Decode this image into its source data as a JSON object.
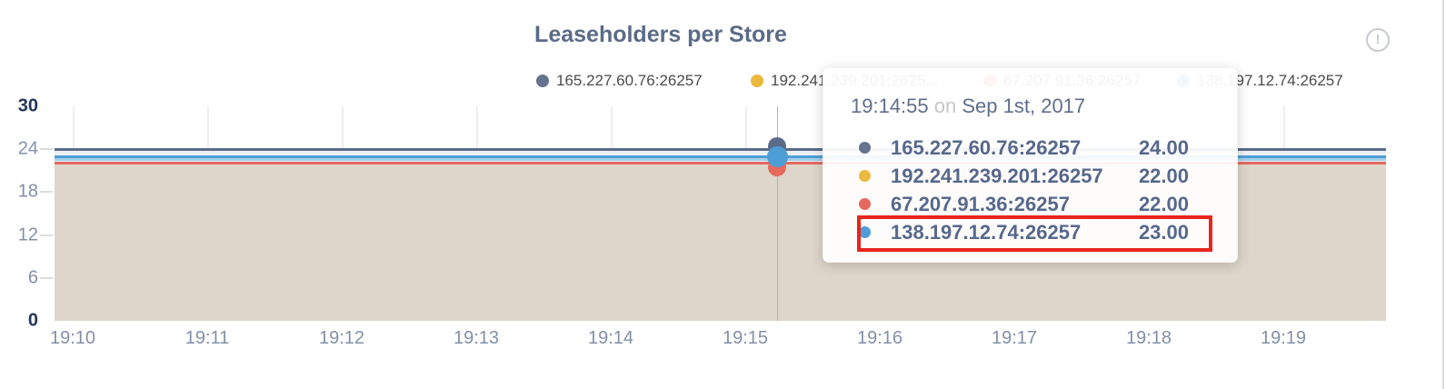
{
  "title": "Leaseholders per Store",
  "info_icon": "circled-exclamation-icon",
  "colors": {
    "slate": "#5b6b8a",
    "yellow": "#eab93d",
    "red": "#e5695e",
    "blue": "#4d9ed6",
    "band_under_slate": "#edf0f4",
    "band_blue_strip1": "#a5cee9",
    "band_blue_strip2": "#e9eff4",
    "area_tan": "#ded6ca",
    "title_color": "#5a6b87",
    "highlight_red": "#e8241c"
  },
  "legend": {
    "items": [
      {
        "label": "165.227.60.76:26257",
        "color": "#64748f"
      },
      {
        "label": "192.241.239.201:2625...",
        "color": "#eab93d"
      },
      {
        "label": "67.207.91.36:26257",
        "color": "#e5695e"
      },
      {
        "label": "138.197.12.74:26257",
        "color": "#4d9ed6"
      }
    ]
  },
  "tooltip": {
    "time": "19:14:55",
    "on_word": "on",
    "date": "Sep 1st, 2017",
    "rows": [
      {
        "label": "165.227.60.76:26257",
        "value": "24.00",
        "color": "#64748f",
        "highlighted": false
      },
      {
        "label": "192.241.239.201:26257",
        "value": "22.00",
        "color": "#eab93d",
        "highlighted": false
      },
      {
        "label": "67.207.91.36:26257",
        "value": "22.00",
        "color": "#e5695e",
        "highlighted": false
      },
      {
        "label": "138.197.12.74:26257",
        "value": "23.00",
        "color": "#4d9ed6",
        "highlighted": true
      }
    ]
  },
  "chart_data": {
    "type": "area",
    "title": "Leaseholders per Store",
    "x_ticks": [
      "19:10",
      "19:11",
      "19:12",
      "19:13",
      "19:14",
      "19:15",
      "19:16",
      "19:17",
      "19:18",
      "19:19"
    ],
    "y_ticks": [
      {
        "value": 30,
        "label": "30",
        "strong": true
      },
      {
        "value": 24,
        "label": "24",
        "strong": false
      },
      {
        "value": 18,
        "label": "18",
        "strong": false
      },
      {
        "value": 12,
        "label": "12",
        "strong": false
      },
      {
        "value": 6,
        "label": "6",
        "strong": false
      },
      {
        "value": 0,
        "label": "0",
        "strong": true
      }
    ],
    "ylim": [
      0,
      30
    ],
    "grid": true,
    "legend_position": "top",
    "hover": {
      "time": "19:14:55",
      "date": "Sep 1st, 2017"
    },
    "series": [
      {
        "name": "165.227.60.76:26257",
        "color": "#5b6b8a",
        "value": 24,
        "values": [
          24,
          24,
          24,
          24,
          24,
          24,
          24,
          24,
          24,
          24
        ]
      },
      {
        "name": "192.241.239.201:26257",
        "color": "#eab93d",
        "value": 22,
        "values": [
          22,
          22,
          22,
          22,
          22,
          22,
          22,
          22,
          22,
          22
        ]
      },
      {
        "name": "67.207.91.36:26257",
        "color": "#e5695e",
        "value": 22,
        "values": [
          22,
          22,
          22,
          22,
          22,
          22,
          22,
          22,
          22,
          22
        ]
      },
      {
        "name": "138.197.12.74:26257",
        "color": "#4d9ed6",
        "value": 23,
        "values": [
          23,
          23,
          23,
          23,
          23,
          23,
          23,
          23,
          23,
          23
        ]
      }
    ]
  }
}
